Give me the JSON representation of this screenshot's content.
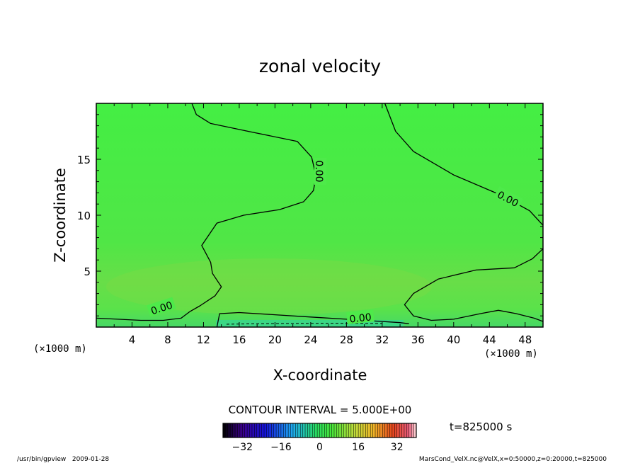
{
  "chart_data": {
    "type": "heatmap",
    "title": "zonal velocity",
    "xlabel": "X-coordinate",
    "ylabel": "Z-coordinate",
    "x_unit_label": "(×1000 m)",
    "y_unit_label": "(×1000 m)",
    "xlim": [
      0,
      50
    ],
    "ylim": [
      0,
      20
    ],
    "x_ticks": [
      4,
      8,
      12,
      16,
      20,
      24,
      28,
      32,
      36,
      40,
      44,
      48
    ],
    "y_ticks": [
      5,
      10,
      15
    ],
    "contour_interval_label": "CONTOUR INTERVAL = 5.000E+00",
    "contour_label": "0.00",
    "time_label": "t=825000 s",
    "colorbar": {
      "range": [
        -40,
        40
      ],
      "ticks": [
        -32,
        -16,
        0,
        16,
        32
      ]
    },
    "footer_left": "/usr/bin/gpview   2009-01-28",
    "footer_right": "MarsCond_VelX.nc@VelX,x=0:50000,z=0:20000,t=825000",
    "zero_contours": [
      {
        "name": "upper-left",
        "points": [
          [
            10.7,
            20
          ],
          [
            11.2,
            19
          ],
          [
            12.8,
            18.2
          ],
          [
            17,
            17.5
          ],
          [
            22.5,
            16.6
          ],
          [
            24.1,
            15.2
          ],
          [
            24.6,
            13.5
          ],
          [
            24.3,
            12.2
          ],
          [
            23.2,
            11.2
          ],
          [
            20.5,
            10.5
          ],
          [
            16.5,
            10
          ],
          [
            13.5,
            9.3
          ],
          [
            11.8,
            7.3
          ],
          [
            12.8,
            5.8
          ],
          [
            13,
            4.8
          ],
          [
            14,
            3.6
          ],
          [
            13.3,
            2.8
          ],
          [
            11.6,
            1.9
          ],
          [
            10.5,
            1.4
          ],
          [
            9.5,
            0.8
          ],
          [
            7.5,
            0.6
          ],
          [
            5,
            0.6
          ],
          [
            0,
            0.8
          ]
        ]
      },
      {
        "name": "upper-right",
        "points": [
          [
            32.3,
            20
          ],
          [
            33.5,
            17.5
          ],
          [
            35.5,
            15.7
          ],
          [
            40,
            13.6
          ],
          [
            45.3,
            11.8
          ],
          [
            48.5,
            10.4
          ],
          [
            50,
            9.1
          ]
        ]
      },
      {
        "name": "lower-right",
        "points": [
          [
            50,
            7
          ],
          [
            48.8,
            6.1
          ],
          [
            46.8,
            5.3
          ],
          [
            42.5,
            5.1
          ],
          [
            38.3,
            4.3
          ],
          [
            35.5,
            3
          ],
          [
            34.5,
            2
          ],
          [
            35.5,
            1
          ],
          [
            37.5,
            0.6
          ],
          [
            40,
            0.7
          ],
          [
            43,
            1.2
          ],
          [
            45,
            1.5
          ],
          [
            47,
            1.2
          ],
          [
            49,
            0.8
          ],
          [
            50,
            0.5
          ]
        ]
      },
      {
        "name": "surface",
        "points": [
          [
            13.5,
            0
          ],
          [
            13.8,
            1.2
          ],
          [
            16,
            1.3
          ],
          [
            20,
            1.1
          ],
          [
            24,
            0.9
          ],
          [
            28,
            0.7
          ],
          [
            32,
            0.5
          ],
          [
            34,
            0.4
          ],
          [
            35,
            0.3
          ]
        ]
      }
    ]
  }
}
